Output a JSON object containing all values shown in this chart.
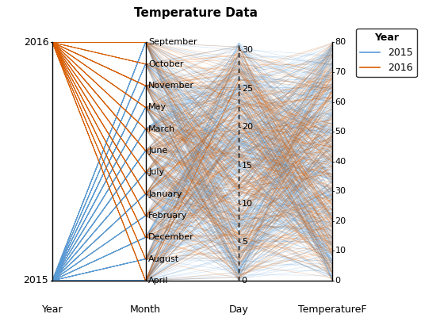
{
  "title": "Temperature Data",
  "axes_labels": [
    "Year",
    "Month",
    "Day",
    "TemperatureF"
  ],
  "year_ticks": [
    2015,
    2016
  ],
  "month_order": [
    "April",
    "August",
    "December",
    "February",
    "January",
    "July",
    "June",
    "March",
    "May",
    "November",
    "October",
    "September"
  ],
  "day_ticks": [
    0,
    5,
    10,
    15,
    20,
    25,
    30
  ],
  "tempF_ticks": [
    0,
    10,
    20,
    30,
    40,
    50,
    60,
    70,
    80
  ],
  "color_2015": "#5b9bd5",
  "color_2016": "#d95f02",
  "alpha": 0.25,
  "linewidth": 0.5,
  "seed": 42,
  "n_2015": 500,
  "n_2016": 300,
  "figwidth": 5.6,
  "figheight": 4.2,
  "dpi": 100
}
